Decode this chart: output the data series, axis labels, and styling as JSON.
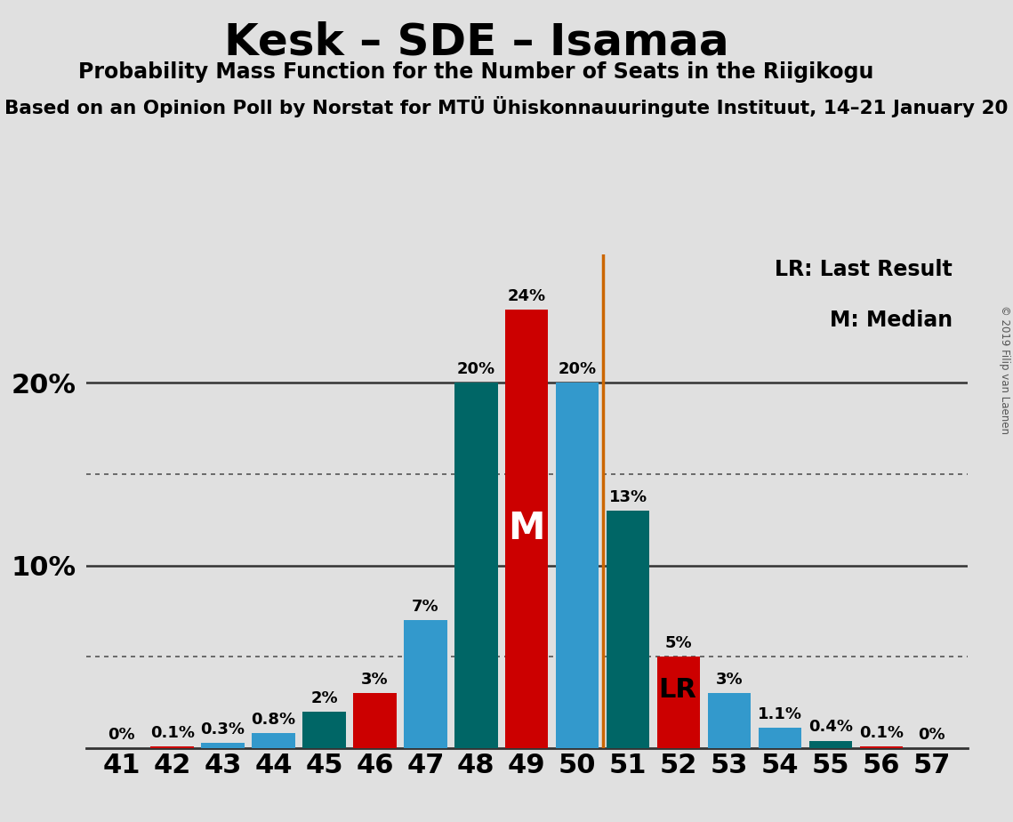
{
  "title": "Kesk – SDE – Isamaa",
  "subtitle": "Probability Mass Function for the Number of Seats in the Riigikogu",
  "subtitle2": "Based on an Opinion Poll by Norstat for MTÜ Ühiskonnauuringute Instituut, 14–21 January 20",
  "copyright": "© 2019 Filip van Laenen",
  "seats": [
    41,
    42,
    43,
    44,
    45,
    46,
    47,
    48,
    49,
    50,
    51,
    52,
    53,
    54,
    55,
    56,
    57
  ],
  "values": [
    0.0,
    0.1,
    0.3,
    0.8,
    2.0,
    3.0,
    7.0,
    20.0,
    24.0,
    20.0,
    13.0,
    5.0,
    3.0,
    1.1,
    0.4,
    0.1,
    0.0
  ],
  "labels": [
    "0%",
    "0.1%",
    "0.3%",
    "0.8%",
    "2%",
    "3%",
    "7%",
    "20%",
    "24%",
    "20%",
    "13%",
    "5%",
    "3%",
    "1.1%",
    "0.4%",
    "0.1%",
    "0%"
  ],
  "show_label": [
    true,
    true,
    true,
    true,
    true,
    true,
    true,
    true,
    true,
    true,
    true,
    true,
    true,
    true,
    true,
    true,
    true
  ],
  "colors": [
    "#e8e8e8",
    "#cc0000",
    "#3399cc",
    "#3399cc",
    "#006666",
    "#cc0000",
    "#3399cc",
    "#006666",
    "#cc0000",
    "#3399cc",
    "#006666",
    "#cc0000",
    "#3399cc",
    "#3399cc",
    "#006666",
    "#cc0000",
    "#e8e8e8"
  ],
  "lr_seat": 50,
  "median_seat": 49,
  "median_label": "M",
  "lr_line_color": "#cc6600",
  "background_color": "#e0e0e0",
  "plot_area_color": "#e0e0e0",
  "major_yticks": [
    10,
    20
  ],
  "dotted_yticks": [
    5,
    15
  ],
  "ylim": [
    0,
    27
  ],
  "legend_lr": "LR: Last Result",
  "legend_m": "M: Median",
  "legend_lr_short": "LR"
}
